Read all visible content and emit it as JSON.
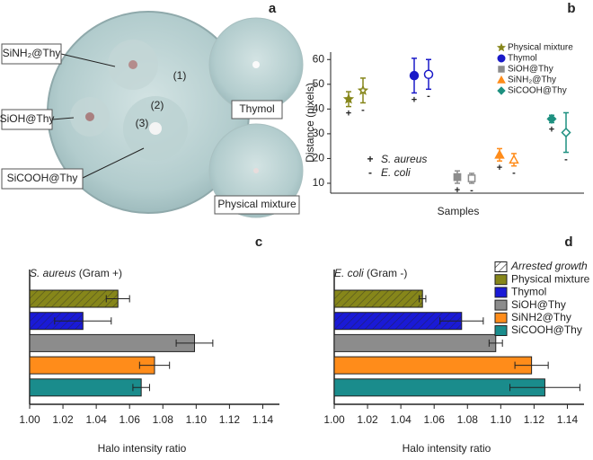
{
  "panel_labels": [
    "a",
    "b",
    "c",
    "d"
  ],
  "photo_panel": {
    "sample_labels": [
      "SiNH₂@Thy",
      "SiOH@Thy",
      "SiCOOH@Thy"
    ],
    "zones": [
      "(1)",
      "(2)",
      "(3)"
    ],
    "dish_labels": [
      "Thymol",
      "Physical mixture"
    ]
  },
  "chart_data": [
    {
      "type": "errorbar_scatter",
      "y_label": "Distance (pixels)",
      "x_label": "Samples",
      "ylim": [
        6,
        63
      ],
      "yticks": [
        10,
        20,
        30,
        40,
        50,
        60
      ],
      "strains": [
        {
          "symbol": "+",
          "label": "S. aureus"
        },
        {
          "symbol": "-",
          "label": "E. coli"
        }
      ],
      "series": [
        {
          "name": "Physical mixture",
          "color": "#86861a",
          "marker": "star",
          "values": [
            44,
            47.5
          ],
          "errors": [
            3,
            5
          ]
        },
        {
          "name": "Thymol",
          "color": "#1a1ac8",
          "marker": "circle",
          "values": [
            53.5,
            54
          ],
          "errors": [
            7,
            6
          ]
        },
        {
          "name": "SiOH@Thy",
          "color": "#8c8c8c",
          "marker": "square",
          "values": [
            12.5,
            12
          ],
          "errors": [
            2.5,
            2
          ]
        },
        {
          "name": "SiNH₂@Thy",
          "color": "#ff8c1a",
          "marker": "triangle",
          "values": [
            21.5,
            19.5
          ],
          "errors": [
            2.5,
            2.5
          ]
        },
        {
          "name": "SiCOOH@Thy",
          "color": "#1e9080",
          "marker": "diamond",
          "values": [
            36,
            30.5
          ],
          "errors": [
            1.5,
            8
          ]
        }
      ]
    },
    {
      "type": "hbar",
      "title_italic": "S. aureus",
      "title": "(Gram +)",
      "x_label": "Halo intensity ratio",
      "xlim": [
        1.0,
        1.15
      ],
      "xticks": [
        {
          "value": 1,
          "label": "1.00"
        },
        1.02,
        1.04,
        1.06,
        1.08,
        {
          "value": 1.1,
          "label": "1.10"
        },
        1.12,
        1.14
      ],
      "values": [
        1.053,
        1.032,
        1.099,
        1.075,
        1.067
      ],
      "errors": [
        0.007,
        0.017,
        0.011,
        0.009,
        0.005
      ],
      "colors": [
        "#86861a",
        "#1a1ad6",
        "#8c8c8c",
        "#ff8c1a",
        "#1a8c8c"
      ],
      "hatched": [
        true,
        true,
        false,
        false,
        false
      ]
    },
    {
      "type": "hbar",
      "title_italic": "E. coli",
      "title": "(Gram -)",
      "x_label": "Halo intensity ratio",
      "xlim": [
        1.0,
        1.15
      ],
      "xticks": [
        {
          "value": 1,
          "label": "1.00"
        },
        1.02,
        1.04,
        1.06,
        1.08,
        {
          "value": 1.1,
          "label": "1.10"
        },
        1.12,
        1.14
      ],
      "values": [
        1.053,
        1.0765,
        1.097,
        1.1185,
        1.1265
      ],
      "errors": [
        0.002,
        0.013,
        0.004,
        0.01,
        0.021
      ],
      "colors": [
        "#86861a",
        "#1a1ad6",
        "#8c8c8c",
        "#ff8c1a",
        "#1a8c8c"
      ],
      "hatched": [
        true,
        true,
        false,
        false,
        false
      ],
      "legend": [
        {
          "name": "Arrested growth",
          "hatch": true
        },
        {
          "name": "Physical mixture",
          "color": "#86861a"
        },
        {
          "name": "Thymol",
          "color": "#1a1ad6"
        },
        {
          "name": "SiOH@Thy",
          "color": "#8c8c8c"
        },
        {
          "name": "SiNH2@Thy",
          "color": "#ff8c1a"
        },
        {
          "name": "SiCOOH@Thy",
          "color": "#1a8c8c"
        }
      ]
    }
  ]
}
